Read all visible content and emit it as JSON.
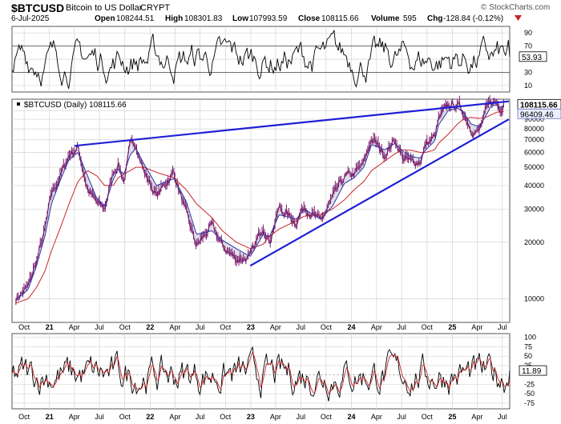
{
  "header": {
    "symbol": "$BTCUSD",
    "name": "Bitcoin to US Dollar",
    "exchange": "CRYPT",
    "date": "6-Jul-2025",
    "open_label": "Open",
    "open": "108244.51",
    "high_label": "High",
    "high": "108301.83",
    "low_label": "Low",
    "low": "107993.59",
    "close_label": "Close",
    "close": "108115.66",
    "volume_label": "Volume",
    "volume": "595",
    "chg_label": "Chg",
    "chg": "-128.84 (-0.12%)",
    "watermark": "© StockCharts.com"
  },
  "chart_data": [
    {
      "type": "line",
      "panel": "upper-oscillator",
      "y_ticks": [
        10,
        30,
        50,
        70,
        90
      ],
      "levels": [
        30,
        70
      ],
      "last_value": 53.93,
      "last_label": "53.93",
      "ylim": [
        0,
        100
      ]
    },
    {
      "type": "line",
      "panel": "price",
      "legend": "$BTCUSD (Daily) 108115.66",
      "yscale": "log",
      "ylim": [
        7500,
        115000
      ],
      "y_ticks": [
        10000,
        20000,
        30000,
        40000,
        50000,
        60000,
        70000,
        80000,
        90000,
        100000
      ],
      "y_tick_labels": [
        "10000",
        "20000",
        "30000",
        "40000",
        "50000",
        "60000",
        "70000",
        "80000",
        "90000",
        "100000"
      ],
      "last_price_label": "108115.66",
      "second_label": "96409.46",
      "x": [
        "2020-09-01",
        "2020-10-15",
        "2020-11-15",
        "2020-12-15",
        "2021-01-08",
        "2021-02-10",
        "2021-03-13",
        "2021-04-14",
        "2021-05-19",
        "2021-06-22",
        "2021-07-20",
        "2021-08-20",
        "2021-09-07",
        "2021-09-28",
        "2021-10-20",
        "2021-11-10",
        "2021-12-10",
        "2022-01-24",
        "2022-03-28",
        "2022-05-12",
        "2022-06-18",
        "2022-08-13",
        "2022-09-20",
        "2022-11-09",
        "2022-12-30",
        "2023-02-15",
        "2023-03-10",
        "2023-04-14",
        "2023-06-15",
        "2023-07-14",
        "2023-09-11",
        "2023-10-24",
        "2023-12-06",
        "2024-01-11",
        "2024-02-15",
        "2024-03-14",
        "2024-05-01",
        "2024-06-07",
        "2024-07-05",
        "2024-08-05",
        "2024-09-06",
        "2024-09-27",
        "2024-10-29",
        "2024-11-12",
        "2024-12-17",
        "2025-01-20",
        "2025-02-10",
        "2025-03-10",
        "2025-04-08",
        "2025-05-01",
        "2025-05-22",
        "2025-06-10",
        "2025-06-22",
        "2025-07-06"
      ],
      "close": [
        10000,
        11500,
        15800,
        23000,
        36000,
        45000,
        58000,
        63500,
        38000,
        32000,
        29800,
        47000,
        52000,
        42000,
        64000,
        67500,
        47000,
        35000,
        47000,
        28000,
        19000,
        24300,
        19000,
        16200,
        16500,
        24500,
        20000,
        30300,
        25500,
        31000,
        25500,
        34000,
        44000,
        46000,
        52000,
        71000,
        58000,
        70000,
        56000,
        53000,
        53500,
        66000,
        72000,
        89000,
        106000,
        106500,
        97500,
        80000,
        76500,
        97000,
        111000,
        110000,
        100000,
        108100
      ],
      "ma_short": [
        9800,
        11200,
        15000,
        21500,
        32000,
        43000,
        55000,
        60000,
        45000,
        34000,
        31000,
        43000,
        49000,
        46000,
        58000,
        63000,
        52000,
        40000,
        43500,
        33000,
        22000,
        23000,
        20500,
        18500,
        16800,
        22000,
        21500,
        28000,
        26500,
        30000,
        26500,
        31000,
        41000,
        44000,
        50000,
        66000,
        62000,
        67000,
        61000,
        57000,
        56000,
        62000,
        69000,
        84000,
        100000,
        103000,
        98000,
        85000,
        82000,
        93000,
        106000,
        107000,
        104000,
        106500
      ],
      "ma_long": [
        9500,
        10000,
        11500,
        14000,
        18000,
        24000,
        32000,
        42000,
        48000,
        45000,
        40000,
        40000,
        44000,
        46000,
        48000,
        50000,
        50000,
        47000,
        44000,
        38000,
        32000,
        27000,
        23000,
        20000,
        18500,
        19500,
        21500,
        23500,
        26000,
        27500,
        28000,
        30000,
        33500,
        38000,
        42000,
        48000,
        54000,
        59000,
        62000,
        61500,
        60000,
        60000,
        62000,
        67000,
        75000,
        85000,
        90000,
        92000,
        91000,
        92000,
        95000,
        98000,
        98500,
        99000
      ],
      "trendlines": [
        {
          "from": [
            "2021-04-01",
            65000
          ],
          "to": [
            "2025-07-25",
            112000
          ]
        },
        {
          "from": [
            "2022-12-30",
            15000
          ],
          "to": [
            "2025-07-25",
            90000
          ]
        }
      ],
      "x_ticks": [
        "Oct",
        "21",
        "Apr",
        "Jul",
        "Oct",
        "22",
        "Apr",
        "Jul",
        "Oct",
        "23",
        "Apr",
        "Jul",
        "Oct",
        "24",
        "Apr",
        "Jul",
        "Oct",
        "25",
        "Apr",
        "Jul"
      ]
    },
    {
      "type": "line",
      "panel": "lower-oscillator",
      "y_ticks": [
        100,
        75,
        50,
        25,
        0,
        -25,
        -50,
        -75
      ],
      "y_tick_labels": [
        "100",
        "75",
        "50",
        "25",
        "",
        "-25",
        "-50",
        "-75"
      ],
      "ylim": [
        -90,
        110
      ],
      "last_value": 11.89,
      "last_label": "11.89"
    }
  ],
  "colors": {
    "price": "#7a1f6e",
    "ma_short": "#2533a8",
    "ma_long": "#c8252a",
    "trend": "#1f1fd6",
    "grid": "#d3d3d3",
    "osc": "#000000",
    "osc_red": "#c8252a",
    "label_box": "#e8eeff"
  }
}
